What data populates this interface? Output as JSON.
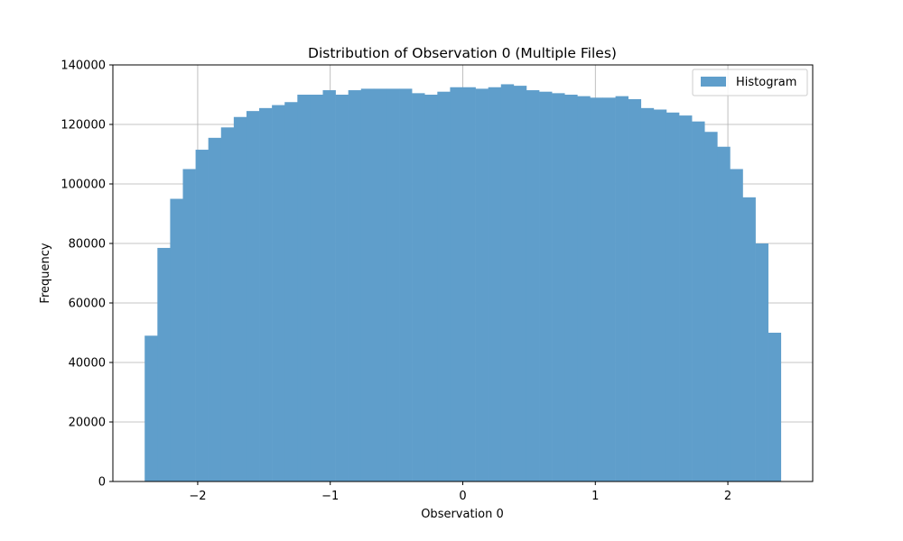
{
  "chart_data": {
    "type": "bar",
    "title": "Distribution of Observation 0 (Multiple Files)",
    "xlabel": "Observation 0",
    "ylabel": "Frequency",
    "xlim": [
      -2.64,
      2.64
    ],
    "ylim": [
      0,
      140000
    ],
    "xticks": [
      -2,
      -1,
      0,
      1,
      2
    ],
    "xtick_labels": [
      "−2",
      "−1",
      "0",
      "1",
      "2"
    ],
    "yticks": [
      0,
      20000,
      40000,
      60000,
      80000,
      100000,
      120000,
      140000
    ],
    "ytick_labels": [
      "0",
      "20000",
      "40000",
      "60000",
      "80000",
      "100000",
      "120000",
      "140000"
    ],
    "grid": true,
    "legend_position": "top-right",
    "bar_color": "#5f9ecb",
    "series": [
      {
        "name": "Histogram",
        "bin_range": [
          -2.4,
          2.4
        ],
        "values": [
          49000,
          78500,
          95000,
          105000,
          111500,
          115500,
          119000,
          122500,
          124500,
          125500,
          126500,
          127500,
          130000,
          130000,
          131500,
          130000,
          131500,
          132000,
          132000,
          132000,
          132000,
          130500,
          130000,
          131000,
          132500,
          132500,
          132000,
          132500,
          133500,
          133000,
          131500,
          131000,
          130500,
          130000,
          129500,
          129000,
          129000,
          129500,
          128500,
          125500,
          125000,
          124000,
          123000,
          121000,
          117500,
          112500,
          105000,
          95500,
          80000,
          50000
        ]
      }
    ]
  }
}
